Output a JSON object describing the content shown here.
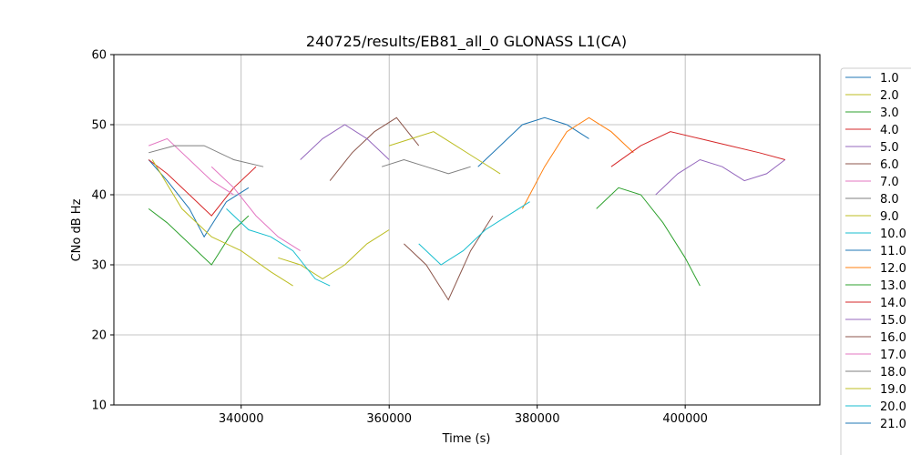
{
  "chart_data": {
    "type": "line",
    "title": "240725/results/EB81_all_0 GLONASS L1(CA)",
    "xlabel": "Time (s)",
    "ylabel": "CNo dB Hz",
    "xlim": [
      322800,
      418200
    ],
    "ylim": [
      10,
      60
    ],
    "x_ticks": [
      340000,
      360000,
      380000,
      400000
    ],
    "y_ticks": [
      10,
      20,
      30,
      40,
      50,
      60
    ],
    "grid": true,
    "legend_position": "right, outside plot (clipped at bottom)",
    "series": [
      {
        "name": "1.0",
        "color": "#1f77b4",
        "x": [
          327500,
          330000,
          333000,
          335000,
          338000,
          341000
        ],
        "y": [
          45,
          42,
          38,
          34,
          39,
          41
        ]
      },
      {
        "name": "2.0",
        "color": "#bcbd22",
        "x": [
          345000,
          348000,
          351000,
          354000,
          357000,
          360000
        ],
        "y": [
          31,
          30,
          28,
          30,
          33,
          35
        ]
      },
      {
        "name": "3.0",
        "color": "#2ca02c",
        "x": [
          327500,
          330000,
          333000,
          336000,
          339000,
          341000
        ],
        "y": [
          38,
          36,
          33,
          30,
          35,
          37
        ]
      },
      {
        "name": "4.0",
        "color": "#d62728",
        "x": [
          327500,
          330000,
          333000,
          336000,
          339000,
          342000
        ],
        "y": [
          45,
          43,
          40,
          37,
          41,
          44
        ]
      },
      {
        "name": "5.0",
        "color": "#9467bd",
        "x": [
          396000,
          399000,
          402000,
          405000,
          408000,
          411000,
          413500
        ],
        "y": [
          40,
          43,
          45,
          44,
          42,
          43,
          45
        ]
      },
      {
        "name": "6.0",
        "color": "#8c564b",
        "x": [
          352000,
          355000,
          358000,
          361000,
          364000
        ],
        "y": [
          42,
          46,
          49,
          51,
          47
        ]
      },
      {
        "name": "7.0",
        "color": "#e377c2",
        "x": [
          327500,
          330000,
          333000,
          336000,
          339000
        ],
        "y": [
          47,
          48,
          45,
          42,
          40
        ]
      },
      {
        "name": "8.0",
        "color": "#7f7f7f",
        "x": [
          327500,
          331000,
          335000,
          339000,
          343000
        ],
        "y": [
          46,
          47,
          47,
          45,
          44
        ]
      },
      {
        "name": "9.0",
        "color": "#bcbd22",
        "x": [
          328000,
          332000,
          336000,
          340000,
          344000,
          347000
        ],
        "y": [
          45,
          38,
          34,
          32,
          29,
          27
        ]
      },
      {
        "name": "10.0",
        "color": "#17becf",
        "x": [
          338000,
          341000,
          344000,
          347000,
          350000,
          352000
        ],
        "y": [
          38,
          35,
          34,
          32,
          28,
          27
        ]
      },
      {
        "name": "11.0",
        "color": "#1f77b4",
        "x": [
          372000,
          375000,
          378000,
          381000,
          384000,
          387000
        ],
        "y": [
          44,
          47,
          50,
          51,
          50,
          48
        ]
      },
      {
        "name": "12.0",
        "color": "#ff7f0e",
        "x": [
          378000,
          381000,
          384000,
          387000,
          390000,
          393000
        ],
        "y": [
          38,
          44,
          49,
          51,
          49,
          46
        ]
      },
      {
        "name": "13.0",
        "color": "#2ca02c",
        "x": [
          388000,
          391000,
          394000,
          397000,
          400000,
          402000
        ],
        "y": [
          38,
          41,
          40,
          36,
          31,
          27
        ]
      },
      {
        "name": "14.0",
        "color": "#d62728",
        "x": [
          390000,
          394000,
          398000,
          402000,
          406000,
          410000,
          413500
        ],
        "y": [
          44,
          47,
          49,
          48,
          47,
          46,
          45
        ]
      },
      {
        "name": "15.0",
        "color": "#9467bd",
        "x": [
          348000,
          351000,
          354000,
          357000,
          360000
        ],
        "y": [
          45,
          48,
          50,
          48,
          45
        ]
      },
      {
        "name": "16.0",
        "color": "#8c564b",
        "x": [
          362000,
          365000,
          368000,
          371000,
          374000
        ],
        "y": [
          33,
          30,
          25,
          32,
          37
        ]
      },
      {
        "name": "17.0",
        "color": "#e377c2",
        "x": [
          336000,
          339000,
          342000,
          345000,
          348000
        ],
        "y": [
          44,
          41,
          37,
          34,
          32
        ]
      },
      {
        "name": "18.0",
        "color": "#7f7f7f",
        "x": [
          359000,
          362000,
          365000,
          368000,
          371000
        ],
        "y": [
          44,
          45,
          44,
          43,
          44
        ]
      },
      {
        "name": "19.0",
        "color": "#bcbd22",
        "x": [
          360000,
          363000,
          366000,
          369000,
          372000,
          375000
        ],
        "y": [
          47,
          48,
          49,
          47,
          45,
          43
        ]
      },
      {
        "name": "20.0",
        "color": "#17becf",
        "x": [
          364000,
          367000,
          370000,
          373000,
          376000,
          379000
        ],
        "y": [
          33,
          30,
          32,
          35,
          37,
          39
        ]
      },
      {
        "name": "21.0",
        "color": "#1f77b4",
        "x": [],
        "y": []
      }
    ]
  }
}
